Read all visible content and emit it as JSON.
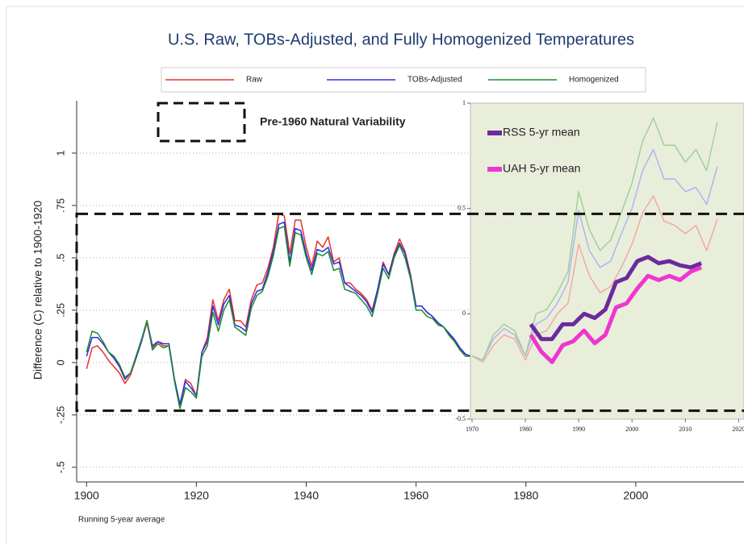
{
  "chart_data": [
    {
      "type": "line",
      "title": "U.S. Raw, TOBs-Adjusted, and Fully Homogenized Temperatures",
      "ylabel": "Difference (C) relative to 1900-1920",
      "note": "Running 5-year average",
      "annotation": {
        "text": "Pre-1960 Natural Variability",
        "range": [
          -0.23,
          0.71
        ]
      },
      "x": [
        1900,
        1901,
        1902,
        1903,
        1904,
        1905,
        1906,
        1907,
        1908,
        1909,
        1910,
        1911,
        1912,
        1913,
        1914,
        1915,
        1916,
        1917,
        1918,
        1919,
        1920,
        1921,
        1922,
        1923,
        1924,
        1925,
        1926,
        1927,
        1928,
        1929,
        1930,
        1931,
        1932,
        1933,
        1934,
        1935,
        1936,
        1937,
        1938,
        1939,
        1940,
        1941,
        1942,
        1943,
        1944,
        1945,
        1946,
        1947,
        1948,
        1949,
        1950,
        1951,
        1952,
        1953,
        1954,
        1955,
        1956,
        1957,
        1958,
        1959,
        1960,
        1961,
        1962,
        1963,
        1964,
        1965,
        1966,
        1967,
        1968,
        1969,
        1970
      ],
      "series": [
        {
          "name": "Raw",
          "color": "#e8302c",
          "values": [
            -0.03,
            0.07,
            0.08,
            0.05,
            0.01,
            -0.02,
            -0.05,
            -0.1,
            -0.06,
            0.02,
            0.1,
            0.19,
            0.07,
            0.1,
            0.08,
            0.08,
            -0.08,
            -0.2,
            -0.08,
            -0.1,
            -0.16,
            0.05,
            0.12,
            0.3,
            0.2,
            0.3,
            0.35,
            0.2,
            0.2,
            0.17,
            0.3,
            0.37,
            0.38,
            0.45,
            0.55,
            0.71,
            0.7,
            0.52,
            0.68,
            0.68,
            0.55,
            0.46,
            0.58,
            0.55,
            0.6,
            0.48,
            0.5,
            0.38,
            0.38,
            0.35,
            0.33,
            0.3,
            0.25,
            0.35,
            0.48,
            0.42,
            0.52,
            0.59,
            0.53,
            0.42,
            0.27,
            0.27,
            0.24,
            0.22,
            0.18,
            0.17,
            0.14,
            0.1,
            0.06,
            0.04,
            0.03
          ]
        },
        {
          "name": "TOBs-Adjusted",
          "color": "#2b2bea",
          "values": [
            0.03,
            0.12,
            0.12,
            0.09,
            0.05,
            0.02,
            -0.02,
            -0.08,
            -0.05,
            0.02,
            0.1,
            0.2,
            0.08,
            0.1,
            0.09,
            0.09,
            -0.08,
            -0.2,
            -0.09,
            -0.12,
            -0.16,
            0.05,
            0.1,
            0.27,
            0.18,
            0.28,
            0.32,
            0.18,
            0.17,
            0.15,
            0.28,
            0.34,
            0.35,
            0.43,
            0.53,
            0.66,
            0.67,
            0.48,
            0.64,
            0.63,
            0.52,
            0.44,
            0.54,
            0.53,
            0.55,
            0.47,
            0.48,
            0.38,
            0.36,
            0.34,
            0.32,
            0.29,
            0.24,
            0.35,
            0.47,
            0.42,
            0.51,
            0.57,
            0.52,
            0.41,
            0.27,
            0.27,
            0.24,
            0.22,
            0.19,
            0.17,
            0.14,
            0.11,
            0.07,
            0.04,
            0.03
          ]
        },
        {
          "name": "Homogenized",
          "color": "#1e8a2e",
          "values": [
            0.05,
            0.15,
            0.14,
            0.1,
            0.05,
            0.03,
            -0.01,
            -0.07,
            -0.05,
            0.03,
            0.11,
            0.2,
            0.06,
            0.09,
            0.07,
            0.08,
            -0.09,
            -0.22,
            -0.12,
            -0.14,
            -0.17,
            0.03,
            0.08,
            0.24,
            0.15,
            0.25,
            0.3,
            0.17,
            0.15,
            0.13,
            0.26,
            0.32,
            0.34,
            0.41,
            0.51,
            0.64,
            0.65,
            0.46,
            0.62,
            0.61,
            0.5,
            0.42,
            0.52,
            0.51,
            0.53,
            0.44,
            0.45,
            0.35,
            0.34,
            0.33,
            0.3,
            0.27,
            0.22,
            0.33,
            0.45,
            0.4,
            0.5,
            0.56,
            0.5,
            0.4,
            0.25,
            0.25,
            0.22,
            0.21,
            0.18,
            0.17,
            0.13,
            0.1,
            0.06,
            0.03,
            0.03
          ]
        }
      ],
      "xlim": [
        1898.2,
        2019.7
      ],
      "ylim": [
        -0.57,
        1.25
      ],
      "xticks": [
        1900,
        1920,
        1940,
        1960,
        1980,
        2000
      ],
      "yticks": [
        {
          "value": -0.5,
          "label": "-.5"
        },
        {
          "value": -0.25,
          "label": "-.25"
        },
        0,
        {
          "value": 0.25,
          "label": ".25"
        },
        {
          "value": 0.5,
          "label": ".5"
        },
        {
          "value": 0.75,
          "label": ".75"
        },
        1
      ],
      "grid": true
    },
    {
      "type": "line",
      "background": "#e9eedb",
      "series": [
        {
          "color": "#f2a9a4",
          "x": [
            1970,
            1972,
            1974,
            1976,
            1978,
            1980,
            1982,
            1984,
            1986,
            1988,
            1990,
            1992,
            1994,
            1996,
            1998,
            2000,
            2002,
            2004,
            2006,
            2008,
            2010,
            2012,
            2014,
            2016
          ],
          "values": [
            -0.2,
            -0.23,
            -0.15,
            -0.1,
            -0.12,
            -0.22,
            -0.1,
            -0.08,
            0.0,
            0.05,
            0.33,
            0.18,
            0.1,
            0.13,
            0.22,
            0.33,
            0.48,
            0.56,
            0.44,
            0.42,
            0.38,
            0.42,
            0.3,
            0.45
          ]
        },
        {
          "color": "#b0b4f0",
          "x": [
            1970,
            1972,
            1974,
            1976,
            1978,
            1980,
            1982,
            1984,
            1986,
            1988,
            1990,
            1992,
            1994,
            1996,
            1998,
            2000,
            2002,
            2004,
            2006,
            2008,
            2010,
            2012,
            2014,
            2016
          ],
          "values": [
            -0.2,
            -0.22,
            -0.12,
            -0.07,
            -0.1,
            -0.2,
            -0.05,
            -0.02,
            0.05,
            0.15,
            0.49,
            0.3,
            0.22,
            0.25,
            0.38,
            0.5,
            0.68,
            0.78,
            0.64,
            0.64,
            0.58,
            0.6,
            0.52,
            0.7
          ]
        },
        {
          "color": "#9fd19a",
          "x": [
            1970,
            1972,
            1974,
            1976,
            1978,
            1980,
            1982,
            1984,
            1986,
            1988,
            1990,
            1992,
            1994,
            1996,
            1998,
            2000,
            2002,
            2004,
            2006,
            2008,
            2010,
            2012,
            2014,
            2016
          ],
          "values": [
            -0.2,
            -0.22,
            -0.1,
            -0.05,
            -0.08,
            -0.2,
            0.0,
            0.02,
            0.1,
            0.2,
            0.58,
            0.4,
            0.3,
            0.35,
            0.48,
            0.62,
            0.82,
            0.93,
            0.8,
            0.8,
            0.72,
            0.78,
            0.68,
            0.91
          ]
        },
        {
          "name": "RSS 5-yr mean",
          "color": "#6b2a9e",
          "x": [
            1981,
            1983,
            1985,
            1987,
            1989,
            1991,
            1993,
            1995,
            1997,
            1999,
            2001,
            2003,
            2005,
            2007,
            2009,
            2011,
            2013
          ],
          "values": [
            -0.05,
            -0.12,
            -0.12,
            -0.05,
            -0.05,
            0.0,
            -0.02,
            0.02,
            0.15,
            0.17,
            0.25,
            0.27,
            0.24,
            0.25,
            0.23,
            0.22,
            0.24
          ]
        },
        {
          "name": "UAH 5-yr mean",
          "color": "#ee36cf",
          "x": [
            1981,
            1983,
            1985,
            1987,
            1989,
            1991,
            1993,
            1995,
            1997,
            1999,
            2001,
            2003,
            2005,
            2007,
            2009,
            2011,
            2013
          ],
          "values": [
            -0.1,
            -0.18,
            -0.23,
            -0.15,
            -0.13,
            -0.08,
            -0.14,
            -0.1,
            0.03,
            0.05,
            0.12,
            0.18,
            0.16,
            0.18,
            0.16,
            0.2,
            0.22
          ]
        }
      ],
      "xlim": [
        1969.7,
        2021
      ],
      "ylim": [
        -0.5,
        1
      ],
      "xticks": [
        1970,
        1980,
        1990,
        2000,
        2010,
        2020
      ],
      "yticks": [
        -0.5,
        0,
        0.5,
        1
      ]
    }
  ]
}
